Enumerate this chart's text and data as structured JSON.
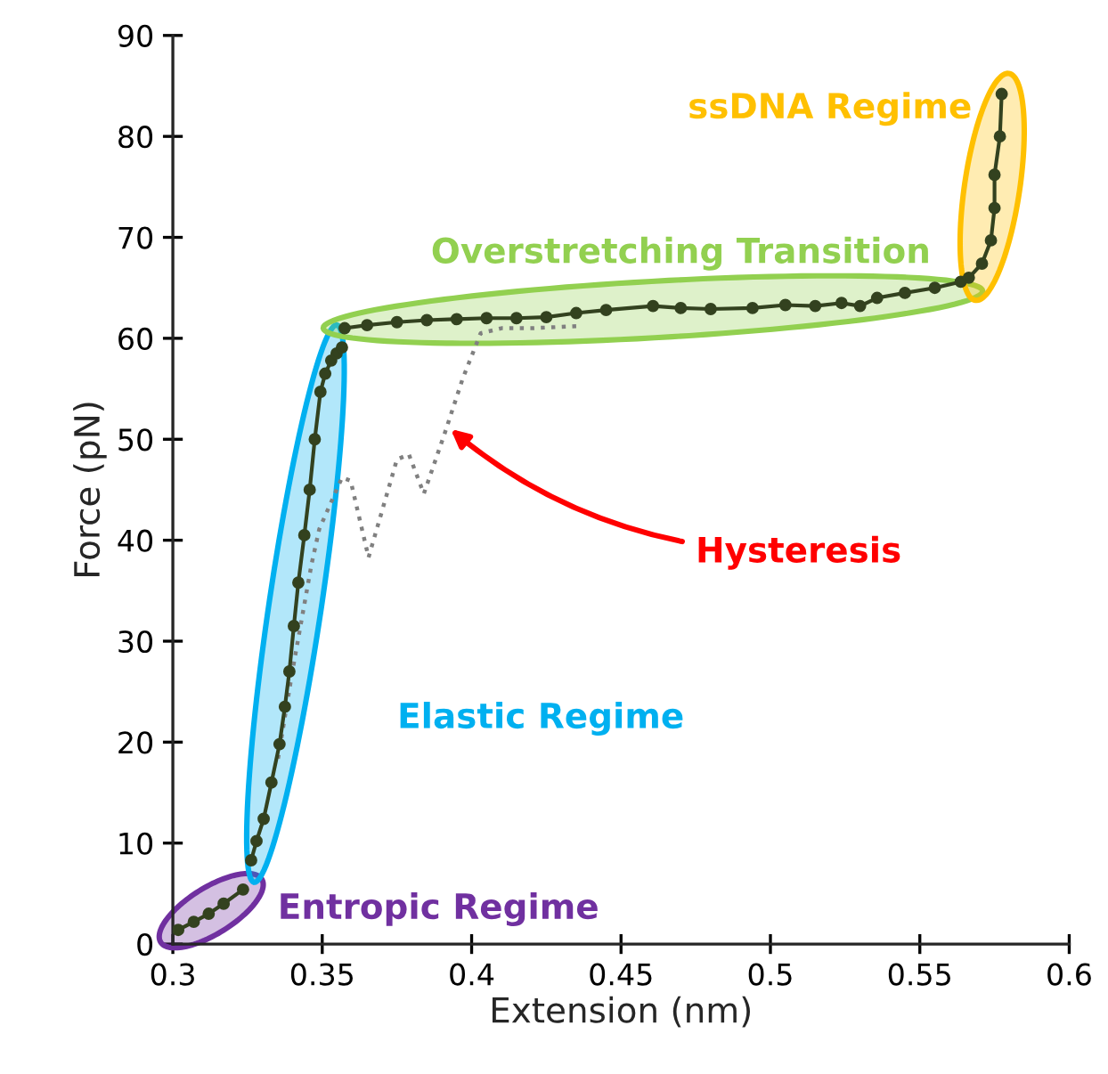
{
  "chart_data": {
    "type": "line",
    "xlabel": "Extension (nm)",
    "ylabel": "Force (pN)",
    "xlim": [
      0.3,
      0.6
    ],
    "ylim": [
      0,
      90
    ],
    "xticks": [
      0.3,
      0.35,
      0.4,
      0.45,
      0.5,
      0.55,
      0.6
    ],
    "yticks": [
      0,
      10,
      20,
      30,
      40,
      50,
      60,
      70,
      80,
      90
    ],
    "grid": false,
    "legend": false,
    "series": [
      {
        "color": "#33421f",
        "marker": "circle",
        "line_style": "solid",
        "x": [
          0.3018,
          0.307,
          0.312,
          0.317,
          0.3235
        ],
        "values": [
          1.4,
          2.2,
          3.0,
          4.0,
          5.4
        ]
      },
      {
        "color": "#33421f",
        "marker": "circle",
        "line_style": "solid",
        "x": [
          0.3262,
          0.328,
          0.3304,
          0.333,
          0.3357,
          0.3375,
          0.339,
          0.3405,
          0.342,
          0.344,
          0.3458,
          0.3475,
          0.3494,
          0.351,
          0.353,
          0.3548,
          0.3566
        ],
        "values": [
          8.3,
          10.2,
          12.4,
          16.0,
          19.8,
          23.5,
          27.0,
          31.5,
          35.8,
          40.5,
          45.0,
          50.0,
          54.7,
          56.5,
          57.8,
          58.5,
          59.1
        ]
      },
      {
        "color": "#33421f",
        "marker": "circle",
        "line_style": "solid",
        "x": [
          0.3575,
          0.365,
          0.375,
          0.385,
          0.395,
          0.405,
          0.415,
          0.425,
          0.435,
          0.445,
          0.4607,
          0.47,
          0.48,
          0.494,
          0.505,
          0.515,
          0.5238,
          0.53,
          0.5357,
          0.545,
          0.555,
          0.5637
        ],
        "values": [
          61.0,
          61.3,
          61.6,
          61.8,
          61.9,
          62.0,
          62.0,
          62.1,
          62.5,
          62.8,
          63.2,
          63.0,
          62.9,
          63.0,
          63.3,
          63.2,
          63.5,
          63.2,
          64.0,
          64.5,
          65.0,
          65.6
        ]
      },
      {
        "color": "#33421f",
        "marker": "circle",
        "line_style": "solid",
        "x": [
          0.5664,
          0.5708,
          0.5738,
          0.575,
          0.575,
          0.5768,
          0.5774
        ],
        "values": [
          66.0,
          67.4,
          69.7,
          72.9,
          76.2,
          80.0,
          84.2
        ]
      },
      {
        "color": "#808080",
        "marker": "none",
        "line_style": "dotted",
        "x": [
          0.435,
          0.42,
          0.41,
          0.403,
          0.397,
          0.391,
          0.384,
          0.379,
          0.375,
          0.3655,
          0.3595,
          0.3566,
          0.349,
          0.3464,
          0.34,
          0.335
        ],
        "values": [
          61.2,
          61.0,
          61.0,
          60.5,
          56.0,
          50.6,
          44.6,
          48.5,
          48.0,
          38.3,
          45.9,
          46.2,
          41.1,
          37.6,
          27.0,
          18.0
        ]
      }
    ],
    "annotations": [
      "Entropic Regime",
      "Elastic Regime",
      "Overstretching Transition",
      "ssDNA Regime",
      {
        "text": "Hysteresis",
        "x": 0.393,
        "y": 51
      }
    ]
  }
}
